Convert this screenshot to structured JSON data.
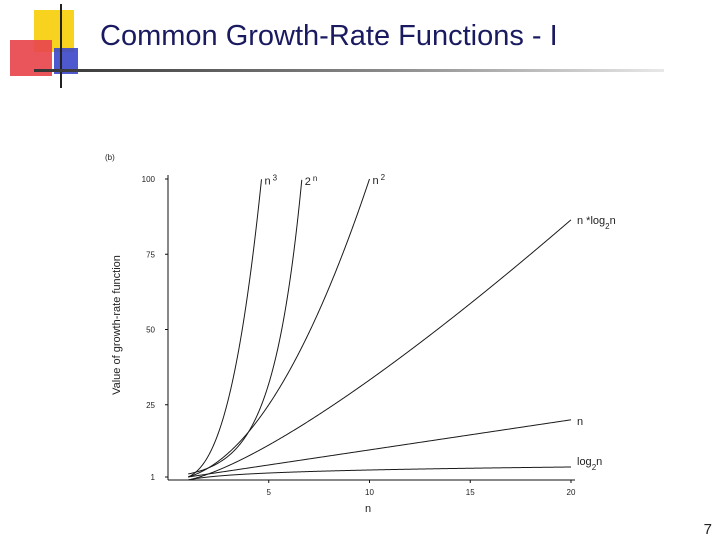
{
  "slide": {
    "title": "Common Growth-Rate Functions - I",
    "page_number": "7"
  },
  "colors": {
    "title": "#1a1a60",
    "logo_yellow": "#f7d320",
    "logo_red": "#e8454d",
    "logo_blue": "#3b47c9"
  },
  "chart_data": {
    "type": "line",
    "panel_label": "(b)",
    "xlabel": "n",
    "ylabel": "Value of growth-rate function",
    "xlim": [
      0,
      20
    ],
    "ylim": [
      0,
      100
    ],
    "x_ticks": [
      5,
      10,
      15,
      20
    ],
    "y_ticks": [
      1,
      25,
      50,
      75,
      100
    ],
    "grid": false,
    "series": [
      {
        "name": "2",
        "sup": "n",
        "sub": "",
        "suffix": "",
        "func": "exp2"
      },
      {
        "name": "n",
        "sup": "3",
        "sub": "",
        "suffix": "",
        "func": "cube"
      },
      {
        "name": "n",
        "sup": "2",
        "sub": "",
        "suffix": "",
        "func": "square"
      },
      {
        "name": "n *log",
        "sup": "",
        "sub": "2",
        "suffix": "n",
        "func": "nlogn"
      },
      {
        "name": "n",
        "sup": "",
        "sub": "",
        "suffix": "",
        "func": "linear"
      },
      {
        "name": "log",
        "sup": "",
        "sub": "2",
        "suffix": "n",
        "func": "log"
      }
    ]
  }
}
